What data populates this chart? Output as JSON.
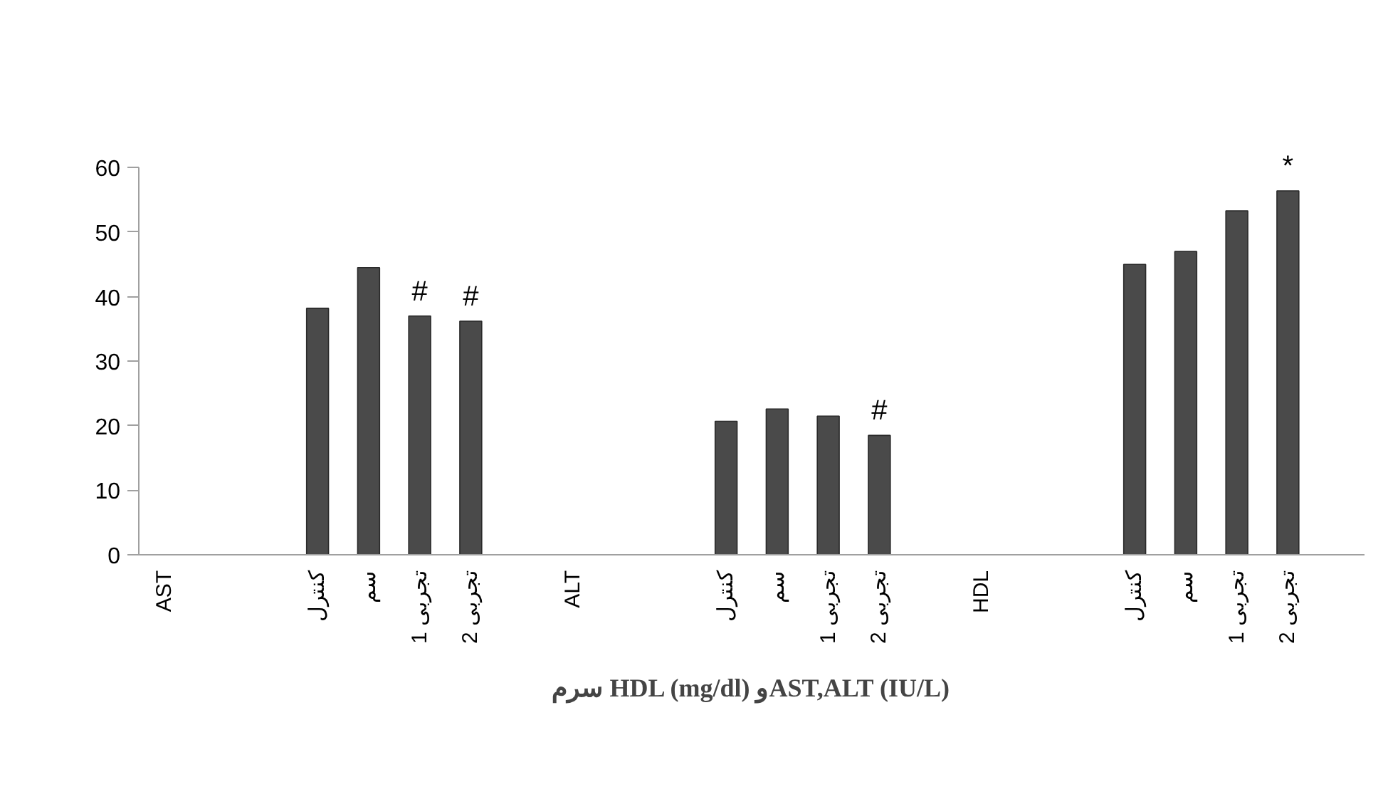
{
  "chart_data": {
    "type": "bar",
    "xlabel": "سرم HDL (mg/dl) وAST,ALT (IU/L)",
    "categories": [
      "AST",
      null,
      null,
      "کنترل",
      "سم",
      "تجربی 1",
      "تجربی 2",
      null,
      "ALT",
      null,
      null,
      "کنترل",
      "سم",
      "تجربی 1",
      "تجربی 2",
      null,
      "HDL",
      null,
      null,
      "کنترل",
      "سم",
      "تجربی 1",
      "تجربی 2",
      null
    ],
    "values": [
      null,
      null,
      null,
      38.2,
      44.5,
      37.0,
      36.2,
      null,
      null,
      null,
      null,
      20.7,
      22.6,
      21.5,
      18.5,
      null,
      null,
      null,
      null,
      45.0,
      47.0,
      53.3,
      56.4,
      null
    ],
    "value_labels": [
      null,
      null,
      null,
      null,
      null,
      "#",
      "#",
      null,
      null,
      null,
      null,
      null,
      null,
      null,
      "#",
      null,
      null,
      null,
      null,
      null,
      null,
      null,
      "*",
      null
    ],
    "color": "#4a4a4a",
    "ylim": [
      0,
      60
    ],
    "yticks": [
      0,
      10,
      20,
      30,
      40,
      50,
      60
    ],
    "grid": false
  }
}
